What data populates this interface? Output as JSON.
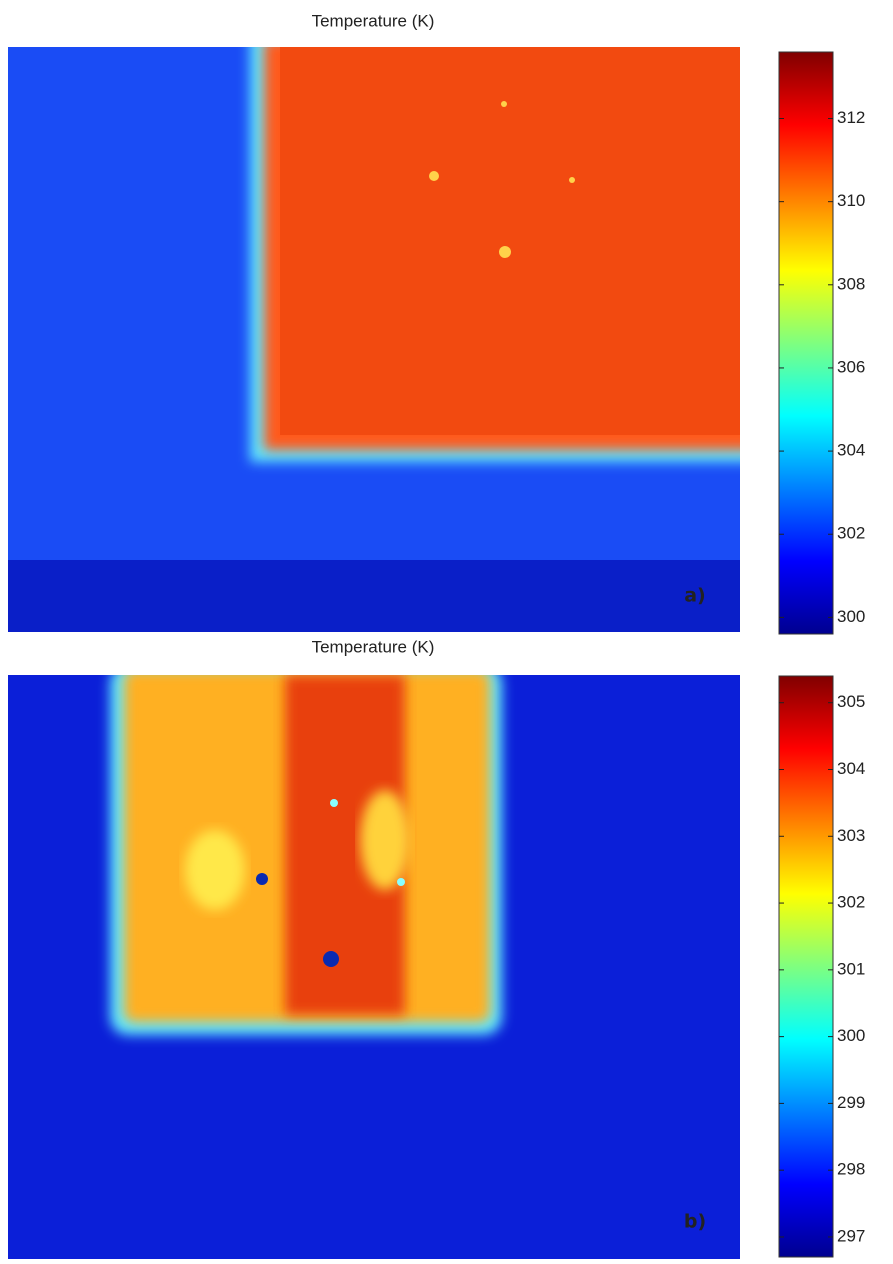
{
  "panels": [
    {
      "title": "Temperature (K)",
      "label": "a)",
      "colorbar": {
        "lim": [
          299.6,
          313.6
        ],
        "ticks": [
          300,
          302,
          304,
          306,
          308,
          310,
          312
        ]
      }
    },
    {
      "title": "Temperature (K)",
      "label": "b)",
      "colorbar": {
        "lim": [
          296.7,
          305.4
        ],
        "ticks": [
          297,
          298,
          299,
          300,
          301,
          302,
          303,
          304,
          305
        ]
      }
    }
  ]
}
